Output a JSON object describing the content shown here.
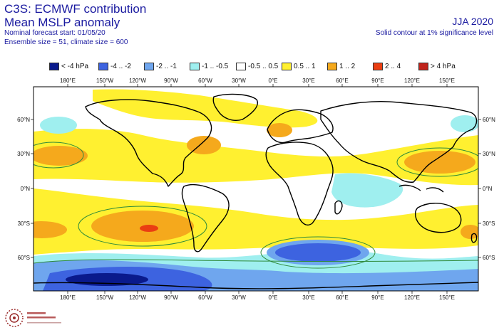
{
  "header": {
    "line1": "C3S: ECMWF contribution",
    "line2": "Mean MSLP anomaly",
    "line3": "Nominal forecast start: 01/05/20",
    "line4": "Ensemble size = 51, climate size = 600",
    "season": "JJA 2020",
    "note": "Solid contour at 1% significance level"
  },
  "legend": [
    {
      "label": "< -4 hPa",
      "color": "#0a1a8c"
    },
    {
      "label": "-4 .. -2",
      "color": "#3d63e0"
    },
    {
      "label": "-2 .. -1",
      "color": "#6fa6ee"
    },
    {
      "label": "-1 .. -0.5",
      "color": "#9fefef"
    },
    {
      "label": "-0.5 .. 0.5",
      "color": "#ffffff"
    },
    {
      "label": "0.5 .. 1",
      "color": "#fff030"
    },
    {
      "label": "1 .. 2",
      "color": "#f5a91c"
    },
    {
      "label": "2 .. 4",
      "color": "#ea3e12"
    },
    {
      "label": "> 4 hPa",
      "color": "#c0241c"
    }
  ],
  "map": {
    "lon_labels": [
      "180°E",
      "150°W",
      "120°W",
      "90°W",
      "60°W",
      "30°W",
      "0°E",
      "30°E",
      "60°E",
      "90°E",
      "120°E",
      "150°E"
    ],
    "lat_labels": [
      "60°N",
      "30°N",
      "0°N",
      "30°S",
      "60°S"
    ],
    "projection": "equirectangular",
    "significance_contour_color": "#2f8a3a",
    "coastline_color": "#000000"
  },
  "logo": {
    "name": "Climate Change Service",
    "icon": "c3s-logo-icon"
  }
}
